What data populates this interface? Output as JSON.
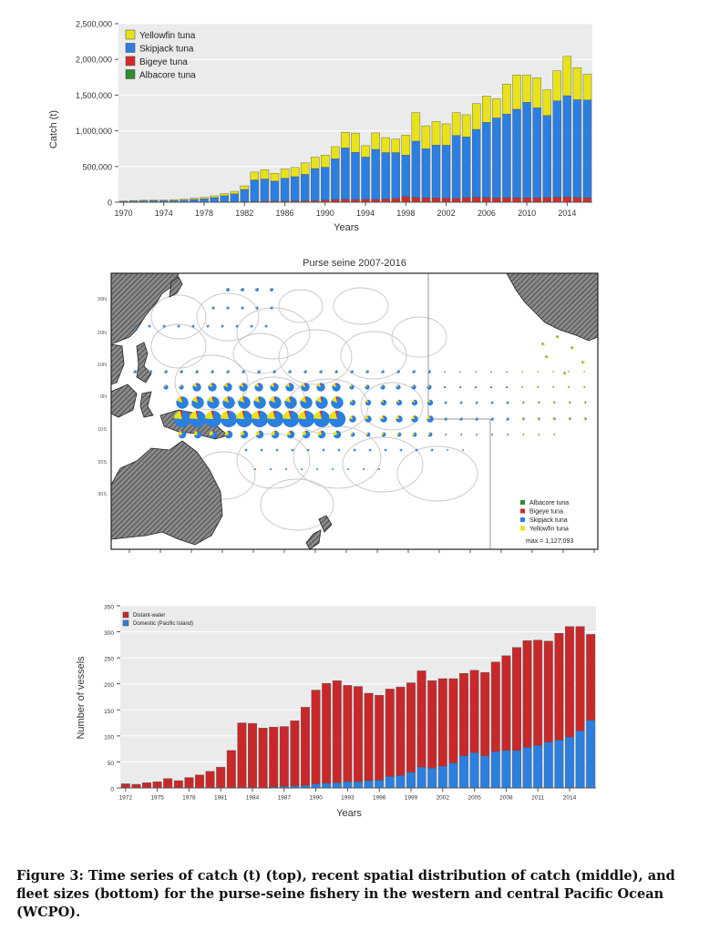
{
  "chart_data": [
    {
      "type": "bar",
      "stacked": true,
      "years": [
        1970,
        1971,
        1972,
        1973,
        1974,
        1975,
        1976,
        1977,
        1978,
        1979,
        1980,
        1981,
        1982,
        1983,
        1984,
        1985,
        1986,
        1987,
        1988,
        1989,
        1990,
        1991,
        1992,
        1993,
        1994,
        1995,
        1996,
        1997,
        1998,
        1999,
        2000,
        2001,
        2002,
        2003,
        2004,
        2005,
        2006,
        2007,
        2008,
        2009,
        2010,
        2011,
        2012,
        2013,
        2014,
        2015,
        2016
      ],
      "tick_labels": [
        "1970",
        "1974",
        "1978",
        "1982",
        "1986",
        "1990",
        "1994",
        "1998",
        "2002",
        "2006",
        "2010",
        "2014"
      ],
      "y_ticks": [
        0,
        500000,
        1000000,
        1500000,
        2000000,
        2500000
      ],
      "y_tick_labels": [
        "0",
        "500,000",
        "1,000,000",
        "1,500,000",
        "2,000,000",
        "2,500,000"
      ],
      "ylim": [
        0,
        2500000
      ],
      "xlabel": "Years",
      "ylabel": "Catch (t)",
      "legend_position": "top-left",
      "series": [
        {
          "name": "Albacore tuna",
          "color": "#2e8b2e",
          "values": [
            0,
            0,
            0,
            0,
            0,
            0,
            0,
            0,
            0,
            0,
            0,
            0,
            0,
            0,
            0,
            0,
            0,
            0,
            0,
            0,
            0,
            0,
            0,
            0,
            0,
            0,
            0,
            0,
            0,
            0,
            0,
            0,
            0,
            0,
            0,
            0,
            0,
            0,
            0,
            0,
            0,
            0,
            0,
            0,
            0,
            0,
            0
          ]
        },
        {
          "name": "Bigeye tuna",
          "color": "#d22b2b",
          "values": [
            1000,
            1000,
            1500,
            2000,
            2000,
            2500,
            3000,
            3500,
            4000,
            5000,
            6000,
            7000,
            9000,
            12000,
            15000,
            15000,
            16000,
            18000,
            20000,
            22000,
            30000,
            38000,
            40000,
            38000,
            42000,
            40000,
            45000,
            55000,
            80000,
            65000,
            60000,
            60000,
            58000,
            55000,
            65000,
            70000,
            68000,
            60000,
            65000,
            62000,
            60000,
            62000,
            65000,
            70000,
            72000,
            65000,
            62000
          ]
        },
        {
          "name": "Skipjack tuna",
          "color": "#2b7fe0",
          "values": [
            10000,
            15000,
            18000,
            20000,
            18000,
            22000,
            25000,
            35000,
            45000,
            60000,
            85000,
            110000,
            170000,
            300000,
            310000,
            280000,
            320000,
            340000,
            370000,
            450000,
            460000,
            570000,
            720000,
            660000,
            590000,
            700000,
            650000,
            640000,
            580000,
            790000,
            690000,
            740000,
            740000,
            880000,
            850000,
            950000,
            1050000,
            1120000,
            1170000,
            1240000,
            1340000,
            1260000,
            1150000,
            1350000,
            1420000,
            1370000,
            1370000
          ]
        },
        {
          "name": "Yellowfin tuna",
          "color": "#e8e21a",
          "values": [
            5000,
            8000,
            10000,
            10000,
            10000,
            12000,
            15000,
            18000,
            20000,
            25000,
            30000,
            35000,
            50000,
            110000,
            130000,
            110000,
            130000,
            130000,
            160000,
            160000,
            170000,
            170000,
            220000,
            270000,
            160000,
            230000,
            210000,
            190000,
            280000,
            400000,
            320000,
            330000,
            300000,
            320000,
            310000,
            360000,
            370000,
            270000,
            420000,
            480000,
            380000,
            420000,
            360000,
            420000,
            550000,
            450000,
            360000
          ]
        }
      ]
    },
    {
      "type": "scatter",
      "title": "Purse seine 2007-2016",
      "lat_labels": [
        "30N",
        "20N",
        "10N",
        "0N",
        "10S",
        "20S",
        "30S"
      ],
      "legend_position": "bottom-right",
      "legend": [
        {
          "name": "Albacore tuna",
          "color": "#2e8b2e"
        },
        {
          "name": "Bigeye tuna",
          "color": "#d22b2b"
        },
        {
          "name": "Skipjack tuna",
          "color": "#2b7fe0"
        },
        {
          "name": "Yellowfin tuna",
          "color": "#e8e21a"
        }
      ],
      "max_label": "max = 1,127,093",
      "max_value": 1127093
    },
    {
      "type": "bar",
      "stacked": true,
      "years": [
        1972,
        1973,
        1974,
        1975,
        1976,
        1977,
        1978,
        1979,
        1980,
        1981,
        1982,
        1983,
        1984,
        1985,
        1986,
        1987,
        1988,
        1989,
        1990,
        1991,
        1992,
        1993,
        1994,
        1995,
        1996,
        1997,
        1998,
        1999,
        2000,
        2001,
        2002,
        2003,
        2004,
        2005,
        2006,
        2007,
        2008,
        2009,
        2010,
        2011,
        2012,
        2013,
        2014,
        2015,
        2016
      ],
      "tick_labels": [
        "1972",
        "1975",
        "1978",
        "1981",
        "1984",
        "1987",
        "1990",
        "1993",
        "1996",
        "1999",
        "2002",
        "2005",
        "2008",
        "2011",
        "2014"
      ],
      "y_ticks": [
        0,
        50,
        100,
        150,
        200,
        250,
        300,
        350
      ],
      "ylim": [
        0,
        350
      ],
      "xlabel": "Years",
      "ylabel": "Number of vessels",
      "legend_position": "top-left",
      "series": [
        {
          "name": "Domestic (Pacific Island)",
          "color": "#2b7fe0",
          "values": [
            0,
            0,
            0,
            0,
            0,
            0,
            0,
            0,
            0,
            0,
            0,
            0,
            0,
            0,
            2,
            3,
            4,
            5,
            8,
            9,
            10,
            12,
            12,
            14,
            15,
            22,
            24,
            30,
            40,
            38,
            42,
            48,
            62,
            68,
            62,
            70,
            72,
            72,
            78,
            82,
            88,
            92,
            98,
            110,
            130
          ]
        },
        {
          "name": "Distant-water",
          "color": "#c8282a",
          "values": [
            8,
            7,
            10,
            12,
            18,
            14,
            20,
            25,
            32,
            40,
            72,
            125,
            124,
            115,
            115,
            115,
            125,
            150,
            180,
            192,
            196,
            185,
            183,
            168,
            163,
            168,
            170,
            172,
            185,
            168,
            168,
            162,
            158,
            158,
            160,
            172,
            182,
            198,
            205,
            202,
            194,
            205,
            212,
            200,
            165
          ]
        }
      ]
    }
  ],
  "caption": "Figure 3: Time series of catch (t) (top), recent spatial distribution of catch (middle), and fleet sizes (bottom) for the purse-seine fishery in the western and central Pacific Ocean (WCPO)."
}
